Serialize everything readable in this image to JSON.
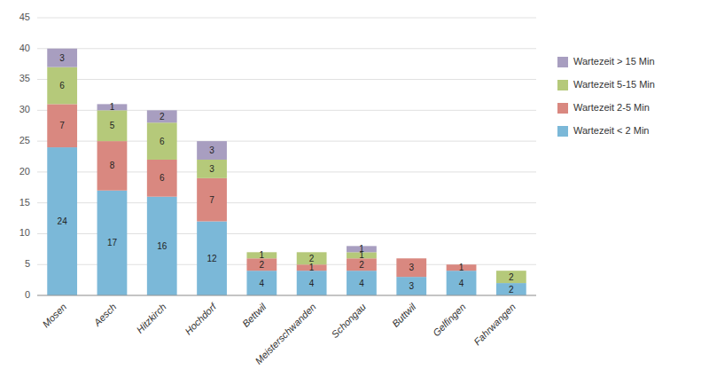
{
  "chart_data": {
    "type": "bar",
    "stacked": true,
    "categories": [
      "Mosen",
      "Aesch",
      "Hitzkirch",
      "Hochdorf",
      "Bettwil",
      "Meisterschwanden",
      "Schongau",
      "Buttwil",
      "Gelfingen",
      "Fahrwangen"
    ],
    "series": [
      {
        "name": "Wartezeit < 2 Min",
        "color": "#7bb8d8",
        "values": [
          24,
          17,
          16,
          12,
          4,
          4,
          4,
          3,
          4,
          2
        ]
      },
      {
        "name": "Wartezeit 2-5 Min",
        "color": "#d98880",
        "values": [
          7,
          8,
          6,
          7,
          2,
          1,
          2,
          3,
          1,
          0
        ]
      },
      {
        "name": "Wartezeit 5-15 Min",
        "color": "#b5c97a",
        "values": [
          6,
          5,
          6,
          3,
          1,
          2,
          1,
          0,
          0,
          2
        ]
      },
      {
        "name": "Wartezeit > 15 Min",
        "color": "#a89ec0",
        "values": [
          3,
          1,
          2,
          3,
          0,
          0,
          1,
          0,
          0,
          0
        ]
      }
    ],
    "ylim": [
      0,
      45
    ],
    "yticks": [
      0,
      5,
      10,
      15,
      20,
      25,
      30,
      35,
      40,
      45
    ],
    "grid": true,
    "legend": "right",
    "data_labels": true
  }
}
